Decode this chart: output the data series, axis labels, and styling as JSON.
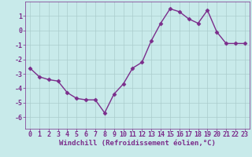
{
  "x": [
    0,
    1,
    2,
    3,
    4,
    5,
    6,
    7,
    8,
    9,
    10,
    11,
    12,
    13,
    14,
    15,
    16,
    17,
    18,
    19,
    20,
    21,
    22,
    23
  ],
  "y": [
    -2.6,
    -3.2,
    -3.4,
    -3.5,
    -4.3,
    -4.7,
    -4.8,
    -4.8,
    -5.7,
    -4.4,
    -3.7,
    -2.6,
    -2.2,
    -0.7,
    0.5,
    1.5,
    1.3,
    0.8,
    0.5,
    1.4,
    -0.1,
    -0.9,
    -0.9,
    -0.9
  ],
  "line_color": "#7B2D8B",
  "marker": "D",
  "marker_size": 2.5,
  "bg_color": "#c8eaea",
  "grid_color": "#aacccc",
  "xlabel": "Windchill (Refroidissement éolien,°C)",
  "xlabel_color": "#7B2D8B",
  "tick_color": "#7B2D8B",
  "spine_color": "#7B2D8B",
  "ylim": [
    -6.8,
    2.0
  ],
  "xlim": [
    -0.5,
    23.5
  ],
  "yticks": [
    -6,
    -5,
    -4,
    -3,
    -2,
    -1,
    0,
    1
  ],
  "xticks": [
    0,
    1,
    2,
    3,
    4,
    5,
    6,
    7,
    8,
    9,
    10,
    11,
    12,
    13,
    14,
    15,
    16,
    17,
    18,
    19,
    20,
    21,
    22,
    23
  ],
  "xlabel_fontsize": 6.5,
  "tick_fontsize": 6.0,
  "line_width": 1.0
}
